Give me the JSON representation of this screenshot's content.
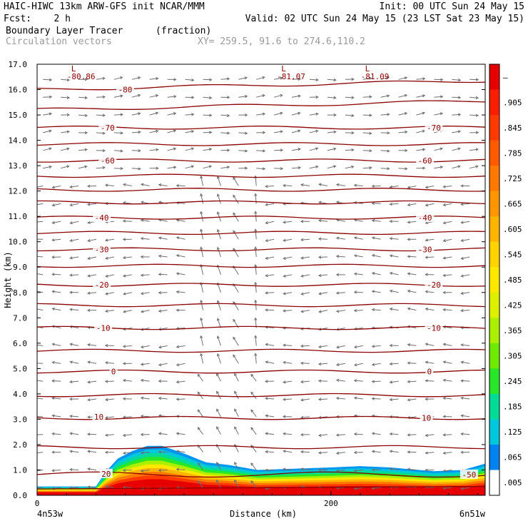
{
  "header": {
    "line1_left": "HAIC-HIWC 13km ARW-GFS init   NCAR/MMM",
    "line1_right": "Init: 00 UTC Sun 24 May 15",
    "line2_left": "Fcst:    2 h",
    "line2_right": "Valid: 02 UTC Sun 24 May 15 (23 LST Sat 23 May 15)",
    "line3_field": "Boundary Layer Tracer",
    "line3_units": "(fraction)",
    "line4_vectors": "Circulation vectors",
    "line4_xy": "XY= 259.5, 91.6 to 274.6,110.2"
  },
  "chart_data": {
    "type": "cross-section",
    "ylabel": "Height (km)",
    "xlabel": "Distance (km)",
    "xlim": [
      0,
      305
    ],
    "ylim": [
      0,
      17
    ],
    "y_ticks": [
      "0.0",
      "1.0",
      "2.0",
      "3.0",
      "4.0",
      "5.0",
      "6.0",
      "7.0",
      "8.0",
      "9.0",
      "10.0",
      "11.0",
      "12.0",
      "13.0",
      "14.0",
      "15.0",
      "16.0",
      "17.0"
    ],
    "x_ticks": [
      {
        "value": 0,
        "label": "0"
      },
      {
        "value": 200,
        "label": "200"
      }
    ],
    "endpoint_labels": {
      "left": "4n53w",
      "right": "6n51w"
    },
    "temperature_contours": {
      "color": "#8b0000",
      "levels_km": [
        0.25,
        0.9,
        1.9,
        3.05,
        3.95,
        4.88,
        5.7,
        6.6,
        7.5,
        8.3,
        9.05,
        9.7,
        10.35,
        10.95,
        11.55,
        12.05,
        12.6,
        13.2,
        13.85,
        14.5,
        15.2,
        16.0
      ],
      "labels": [
        {
          "text": "20",
          "x": 47,
          "y": 0.85
        },
        {
          "text": "-50",
          "x": 294,
          "y": 0.82
        },
        {
          "text": "10",
          "x": 42,
          "y": 3.1
        },
        {
          "text": "10",
          "x": 265,
          "y": 3.05
        },
        {
          "text": "0",
          "x": 52,
          "y": 4.88
        },
        {
          "text": "0",
          "x": 267,
          "y": 4.88
        },
        {
          "text": "-10",
          "x": 45,
          "y": 6.6
        },
        {
          "text": "-10",
          "x": 270,
          "y": 6.6
        },
        {
          "text": "-20",
          "x": 44,
          "y": 8.3
        },
        {
          "text": "-20",
          "x": 270,
          "y": 8.3
        },
        {
          "text": "-30",
          "x": 44,
          "y": 9.7
        },
        {
          "text": "-30",
          "x": 264,
          "y": 9.7
        },
        {
          "text": "-40",
          "x": 44,
          "y": 10.95
        },
        {
          "text": "-40",
          "x": 264,
          "y": 10.95
        },
        {
          "text": "-60",
          "x": 48,
          "y": 13.2
        },
        {
          "text": "-60",
          "x": 264,
          "y": 13.2
        },
        {
          "text": "-70",
          "x": 48,
          "y": 14.5
        },
        {
          "text": "-70",
          "x": 270,
          "y": 14.5
        },
        {
          "text": "-80",
          "x": 60,
          "y": 16.0
        }
      ],
      "minima": [
        {
          "mark": "L",
          "value": "-80.86",
          "x": 30
        },
        {
          "mark": "L",
          "value": "-81.07",
          "x": 173
        },
        {
          "mark": "L",
          "value": "-81.09",
          "x": 230
        }
      ]
    },
    "tracer_field": {
      "name": "Boundary Layer Tracer (fraction)",
      "range": [
        0,
        1
      ],
      "core_value": 0.95,
      "top_profile_x": [
        0,
        40,
        47,
        55,
        65,
        75,
        85,
        100,
        115,
        130,
        150,
        175,
        200,
        220,
        240,
        270,
        290,
        305
      ],
      "top_profile_km": [
        0.35,
        0.35,
        0.95,
        1.45,
        1.75,
        1.95,
        1.95,
        1.65,
        1.3,
        1.2,
        1.0,
        1.05,
        1.1,
        1.15,
        1.1,
        0.95,
        1.0,
        1.25
      ]
    },
    "colorbar": {
      "labels": [
        "–",
        ".905",
        ".845",
        ".785",
        ".725",
        ".665",
        ".605",
        ".545",
        ".485",
        ".425",
        ".365",
        ".305",
        ".245",
        ".185",
        ".125",
        ".065",
        ".005"
      ],
      "colors_top_to_bottom": [
        "#e60000",
        "#fa1e00",
        "#ff3a00",
        "#ff5a00",
        "#ff7800",
        "#ff9600",
        "#ffb400",
        "#ffd200",
        "#ffe800",
        "#dcf000",
        "#aaf000",
        "#6eeb00",
        "#28e628",
        "#00dc96",
        "#00c8dc",
        "#0082f0",
        "#ffffff"
      ]
    }
  }
}
